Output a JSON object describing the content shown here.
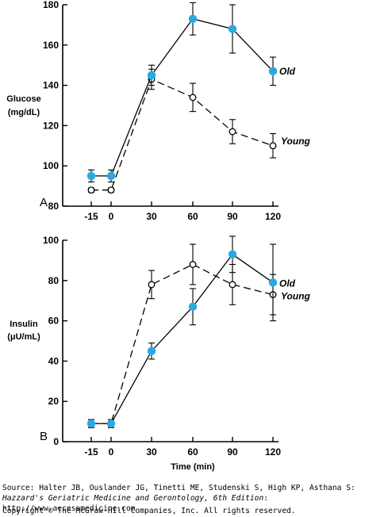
{
  "chart_data": [
    {
      "type": "line",
      "panel": "A",
      "ylabel_lines": [
        "Glucose",
        "(mg/dL)"
      ],
      "xlabel": "",
      "x_ticks": [
        "-15",
        "0",
        "30",
        "60",
        "90",
        "120"
      ],
      "x": [
        -15,
        0,
        30,
        60,
        90,
        120
      ],
      "ylim": [
        80,
        180
      ],
      "y_ticks": [
        80,
        100,
        120,
        140,
        160,
        180
      ],
      "series": [
        {
          "name": "Old",
          "style": "solid",
          "marker": "filled",
          "color": "#29a9e1",
          "values": [
            95,
            95,
            145,
            173,
            168,
            147
          ],
          "error": [
            3,
            3,
            5,
            8,
            12,
            7
          ]
        },
        {
          "name": "Young",
          "style": "dashed",
          "marker": "open",
          "color": "#000000",
          "values": [
            88,
            88,
            143,
            134,
            117,
            110
          ],
          "error": [
            1,
            1,
            5,
            7,
            6,
            6
          ]
        }
      ]
    },
    {
      "type": "line",
      "panel": "B",
      "ylabel_lines": [
        "Insulin",
        "(μU/mL)"
      ],
      "xlabel": "Time (min)",
      "x_ticks": [
        "-15",
        "0",
        "30",
        "60",
        "90",
        "120"
      ],
      "x": [
        -15,
        0,
        30,
        60,
        90,
        120
      ],
      "ylim": [
        0,
        100
      ],
      "y_ticks": [
        0,
        20,
        40,
        60,
        80,
        100
      ],
      "series": [
        {
          "name": "Old",
          "style": "solid",
          "marker": "filled",
          "color": "#29a9e1",
          "values": [
            9,
            9,
            45,
            67,
            93,
            79
          ],
          "error": [
            2,
            2,
            4,
            9,
            9,
            19
          ]
        },
        {
          "name": "Young",
          "style": "dashed",
          "marker": "open",
          "color": "#000000",
          "values": [
            9,
            9,
            78,
            88,
            78,
            73
          ],
          "error": [
            2,
            2,
            7,
            10,
            10,
            10
          ]
        }
      ]
    }
  ],
  "source": {
    "prefix": "Source: Halter JB, Ouslander JG, Tinetti ME, Studenski S, High KP, Asthana S: ",
    "title": "Hazzard's Geriatric Medicine and Gerontology, 6th Edition",
    "suffix": ": http://www.accessmedicine.com"
  },
  "copyright": "Copyright © The McGraw-Hill Companies, Inc. All rights reserved."
}
